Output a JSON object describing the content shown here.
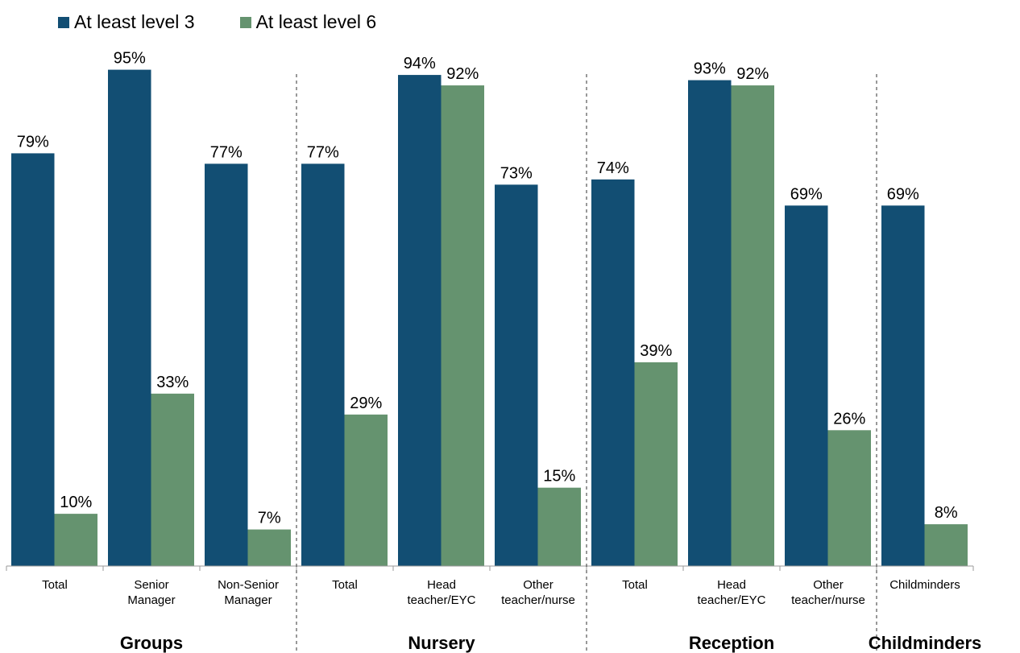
{
  "chart_data": {
    "type": "bar",
    "legend_position": "top-left",
    "ylim": [
      0,
      100
    ],
    "grid": false,
    "series": [
      {
        "name": "At least level 3",
        "color": "#124e73",
        "values": [
          79,
          95,
          77,
          77,
          94,
          73,
          74,
          93,
          69,
          69
        ]
      },
      {
        "name": "At least level 6",
        "color": "#65936f",
        "values": [
          10,
          33,
          7,
          29,
          92,
          15,
          39,
          92,
          26,
          8
        ]
      }
    ],
    "categories": [
      {
        "label": [
          "Total"
        ]
      },
      {
        "label": [
          "Senior",
          "Manager"
        ]
      },
      {
        "label": [
          "Non-Senior",
          "Manager"
        ]
      },
      {
        "label": [
          "Total"
        ]
      },
      {
        "label": [
          "Head",
          "teacher/EYC"
        ]
      },
      {
        "label": [
          "Other",
          "teacher/nurse"
        ]
      },
      {
        "label": [
          "Total"
        ]
      },
      {
        "label": [
          "Head",
          "teacher/EYC"
        ]
      },
      {
        "label": [
          "Other",
          "teacher/nurse"
        ]
      },
      {
        "label": [
          "Childminders"
        ]
      }
    ],
    "data_labels": [
      [
        "79%",
        "95%",
        "77%",
        "77%",
        "94%",
        "73%",
        "74%",
        "93%",
        "69%",
        "69%"
      ],
      [
        "10%",
        "33%",
        "7%",
        "29%",
        "92%",
        "15%",
        "39%",
        "92%",
        "26%",
        "8%"
      ]
    ],
    "groups": [
      {
        "name": "Groups",
        "start": 0,
        "end": 2
      },
      {
        "name": "Nursery",
        "start": 3,
        "end": 5
      },
      {
        "name": "Reception",
        "start": 6,
        "end": 8
      },
      {
        "name": "Childminders",
        "start": 9,
        "end": 9
      }
    ]
  }
}
